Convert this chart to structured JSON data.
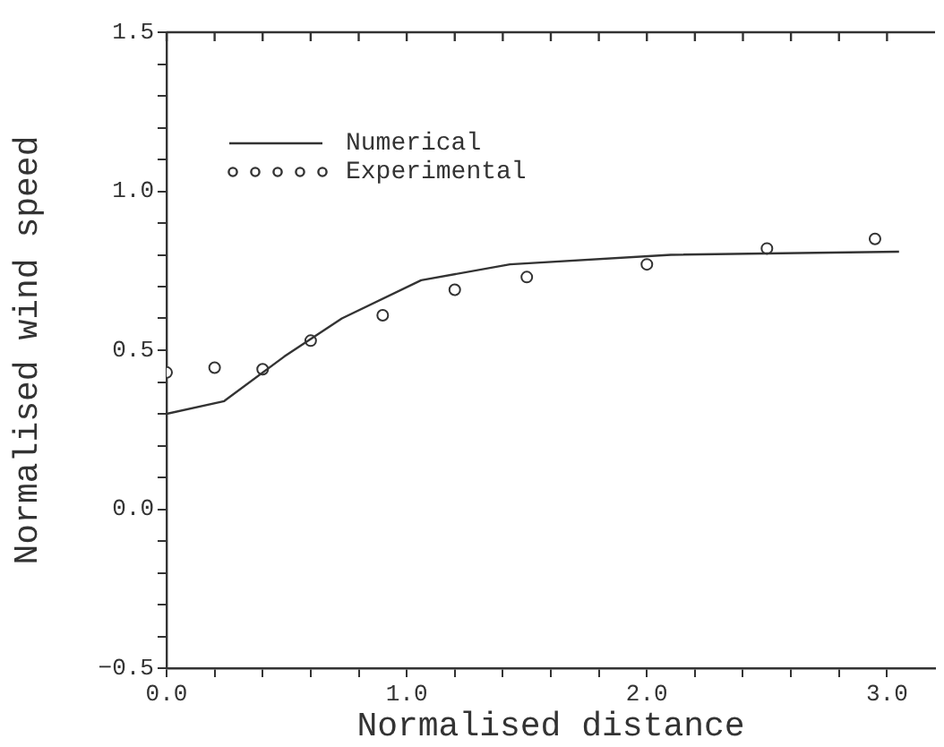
{
  "chart_data": {
    "type": "line",
    "xlabel": "Normalised distance",
    "ylabel": "Normalised wind speed",
    "xlim": [
      0,
      3.2
    ],
    "ylim": [
      -0.5,
      1.5
    ],
    "xticks": [
      {
        "value": 0,
        "label": "0.0"
      },
      {
        "value": 0.2,
        "label": null
      },
      {
        "value": 0.4,
        "label": null
      },
      {
        "value": 0.6,
        "label": null
      },
      {
        "value": 0.8,
        "label": null
      },
      {
        "value": 1,
        "label": "1.0"
      },
      {
        "value": 1.2,
        "label": null
      },
      {
        "value": 1.4,
        "label": null
      },
      {
        "value": 1.6,
        "label": null
      },
      {
        "value": 1.8,
        "label": null
      },
      {
        "value": 2,
        "label": "2.0"
      },
      {
        "value": 2.2,
        "label": null
      },
      {
        "value": 2.4,
        "label": null
      },
      {
        "value": 2.6,
        "label": null
      },
      {
        "value": 2.8,
        "label": null
      },
      {
        "value": 3,
        "label": "3.0"
      }
    ],
    "yticks": [
      {
        "value": -0.5,
        "label": "−0.5"
      },
      {
        "value": -0.4,
        "label": null
      },
      {
        "value": -0.3,
        "label": null
      },
      {
        "value": -0.2,
        "label": null
      },
      {
        "value": -0.1,
        "label": null
      },
      {
        "value": 0,
        "label": "0.0"
      },
      {
        "value": 0.1,
        "label": null
      },
      {
        "value": 0.2,
        "label": null
      },
      {
        "value": 0.3,
        "label": null
      },
      {
        "value": 0.4,
        "label": null
      },
      {
        "value": 0.5,
        "label": "0.5"
      },
      {
        "value": 0.6,
        "label": null
      },
      {
        "value": 0.7,
        "label": null
      },
      {
        "value": 0.8,
        "label": null
      },
      {
        "value": 0.9,
        "label": null
      },
      {
        "value": 1,
        "label": "1.0"
      },
      {
        "value": 1.1,
        "label": null
      },
      {
        "value": 1.2,
        "label": null
      },
      {
        "value": 1.3,
        "label": null
      },
      {
        "value": 1.4,
        "label": null
      },
      {
        "value": 1.5,
        "label": "1.5"
      }
    ],
    "grid": false,
    "legend": "top left",
    "series": [
      {
        "name": "Numerical",
        "color": "#333333",
        "marker": "none",
        "line_style": "solid",
        "x": [
          0,
          0.24,
          0.49,
          0.73,
          1.06,
          1.43,
          2.1,
          3.05
        ],
        "values": [
          0.3,
          0.34,
          0.48,
          0.6,
          0.72,
          0.77,
          0.8,
          0.81
        ]
      },
      {
        "name": "Experimental",
        "type": "scatter",
        "color": "#333333",
        "marker": "circle",
        "x": [
          0,
          0.2,
          0.4,
          0.6,
          0.9,
          1.2,
          1.5,
          2,
          2.5,
          2.95
        ],
        "values": [
          0.43,
          0.445,
          0.44,
          0.53,
          0.61,
          0.69,
          0.73,
          0.77,
          0.82,
          0.85
        ]
      }
    ]
  }
}
